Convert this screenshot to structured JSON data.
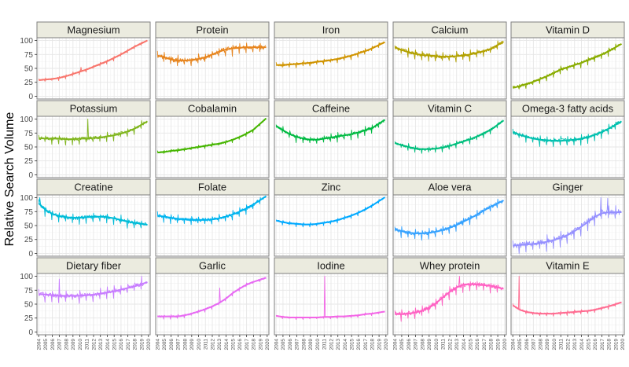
{
  "chart_data": {
    "type": "line",
    "title": "",
    "xlabel": "",
    "ylabel": "Relative Search Volume",
    "ylim": [
      0,
      100
    ],
    "y_ticks": [
      "0",
      "25",
      "50",
      "75",
      "100"
    ],
    "x_ticks": [
      "2004",
      "2005",
      "2006",
      "2007",
      "2008",
      "2009",
      "2010",
      "2011",
      "2012",
      "2013",
      "2014",
      "2015",
      "2016",
      "2017",
      "2018",
      "2019",
      "2020"
    ],
    "x": [
      2004,
      2005,
      2006,
      2007,
      2008,
      2009,
      2010,
      2011,
      2012,
      2013,
      2014,
      2015,
      2016,
      2017,
      2018,
      2019,
      2020
    ],
    "layout": "facet grid 4 rows x 5 columns, shared y axis, x ticks on bottom row",
    "grid": true,
    "legend": "none",
    "series_note": "Each panel shows monthly raw series (thin line) and a smoothed trend (thick line); values below are the trend read at yearly ticks plus notable spikes.",
    "series": [
      {
        "name": "Magnesium",
        "color": "#F8766D",
        "trend": [
          29,
          30,
          31,
          33,
          36,
          40,
          44,
          48,
          53,
          58,
          63,
          69,
          75,
          82,
          89,
          95,
          null
        ],
        "noise": 3,
        "spikes": [
          {
            "x": 2010.2,
            "y": 52
          }
        ]
      },
      {
        "name": "Protein",
        "color": "#E7851E",
        "trend": [
          73,
          70,
          66,
          64,
          64,
          65,
          67,
          70,
          75,
          80,
          84,
          86,
          87,
          88,
          88,
          88,
          null
        ],
        "noise": 8,
        "spikes": []
      },
      {
        "name": "Iron",
        "color": "#D09400",
        "trend": [
          56,
          56,
          57,
          58,
          59,
          60,
          62,
          63,
          65,
          67,
          70,
          73,
          77,
          81,
          86,
          92,
          null
        ],
        "noise": 4,
        "spikes": []
      },
      {
        "name": "Calcium",
        "color": "#B2A100",
        "trend": [
          88,
          83,
          79,
          76,
          74,
          73,
          72,
          71,
          71,
          72,
          73,
          75,
          78,
          81,
          85,
          92,
          null
        ],
        "noise": 7,
        "spikes": []
      },
      {
        "name": "Vitamin D",
        "color": "#89AC00",
        "trend": [
          15,
          18,
          22,
          26,
          31,
          36,
          42,
          48,
          52,
          56,
          60,
          65,
          70,
          75,
          81,
          88,
          null
        ],
        "noise": 5,
        "spikes": []
      },
      {
        "name": "Potassium",
        "color": "#7FB51C",
        "trend": [
          66,
          65,
          65,
          65,
          64,
          64,
          65,
          65,
          66,
          67,
          69,
          71,
          74,
          78,
          83,
          90,
          null
        ],
        "noise": 6,
        "spikes": [
          {
            "x": 2011.2,
            "y": 100
          }
        ]
      },
      {
        "name": "Cobalamin",
        "color": "#45B500",
        "trend": [
          40,
          41,
          43,
          44,
          46,
          48,
          50,
          52,
          54,
          56,
          59,
          63,
          68,
          74,
          81,
          92,
          null
        ],
        "noise": 3,
        "spikes": []
      },
      {
        "name": "Caffeine",
        "color": "#00BA42",
        "trend": [
          88,
          80,
          73,
          68,
          65,
          63,
          63,
          65,
          67,
          69,
          71,
          73,
          76,
          80,
          84,
          92,
          null
        ],
        "noise": 6,
        "spikes": []
      },
      {
        "name": "Vitamin C",
        "color": "#00BF7D",
        "trend": [
          57,
          53,
          50,
          47,
          46,
          46,
          47,
          49,
          52,
          56,
          60,
          64,
          69,
          75,
          81,
          90,
          null
        ],
        "noise": 5,
        "spikes": []
      },
      {
        "name": "Omega-3 fatty acids",
        "color": "#00C0AF",
        "trend": [
          77,
          72,
          68,
          65,
          63,
          62,
          61,
          61,
          62,
          63,
          65,
          68,
          72,
          77,
          83,
          90,
          null
        ],
        "noise": 7,
        "spikes": []
      },
      {
        "name": "Creatine",
        "color": "#00BCD8",
        "trend": [
          90,
          78,
          71,
          67,
          65,
          64,
          64,
          65,
          66,
          66,
          65,
          63,
          60,
          57,
          55,
          53,
          null
        ],
        "noise": 7,
        "spikes": [
          {
            "x": 2004.2,
            "y": 100
          }
        ]
      },
      {
        "name": "Folate",
        "color": "#00B4EF",
        "trend": [
          68,
          66,
          64,
          62,
          61,
          60,
          60,
          60,
          61,
          63,
          66,
          70,
          75,
          81,
          88,
          96,
          null
        ],
        "noise": 6,
        "spikes": []
      },
      {
        "name": "Zinc",
        "color": "#00A9FF",
        "trend": [
          59,
          56,
          54,
          53,
          52,
          52,
          53,
          55,
          57,
          60,
          64,
          68,
          73,
          79,
          86,
          94,
          null
        ],
        "noise": 3,
        "spikes": []
      },
      {
        "name": "Aloe vera",
        "color": "#35A2FF",
        "trend": [
          43,
          40,
          37,
          36,
          36,
          37,
          39,
          42,
          46,
          51,
          57,
          63,
          70,
          77,
          84,
          90,
          null
        ],
        "noise": 7,
        "spikes": []
      },
      {
        "name": "Ginger",
        "color": "#9590FF",
        "trend": [
          14,
          15,
          16,
          17,
          19,
          21,
          24,
          28,
          33,
          40,
          48,
          57,
          66,
          72,
          74,
          74,
          null
        ],
        "noise": 10,
        "spikes": [
          {
            "x": 2016.8,
            "y": 100
          },
          {
            "x": 2017.8,
            "y": 99
          }
        ]
      },
      {
        "name": "Dietary fiber",
        "color": "#C77CFF",
        "trend": [
          68,
          67,
          66,
          65,
          65,
          65,
          65,
          66,
          67,
          69,
          71,
          73,
          76,
          79,
          82,
          86,
          null
        ],
        "noise": 8,
        "spikes": [
          {
            "x": 2007.0,
            "y": 95
          },
          {
            "x": 2019.0,
            "y": 100
          }
        ]
      },
      {
        "name": "Garlic",
        "color": "#E76BF3",
        "trend": [
          28,
          28,
          28,
          28,
          30,
          33,
          37,
          41,
          46,
          52,
          60,
          70,
          78,
          85,
          90,
          94,
          null
        ],
        "noise": 3,
        "spikes": [
          {
            "x": 2013.1,
            "y": 79
          }
        ]
      },
      {
        "name": "Iodine",
        "color": "#F365E6",
        "trend": [
          29,
          27,
          26,
          26,
          26,
          26,
          26,
          27,
          27,
          28,
          28,
          29,
          30,
          32,
          33,
          35,
          null
        ],
        "noise": 2,
        "spikes": [
          {
            "x": 2011.1,
            "y": 100
          }
        ]
      },
      {
        "name": "Whey protein",
        "color": "#FF61C3",
        "trend": [
          32,
          32,
          33,
          35,
          38,
          44,
          52,
          62,
          72,
          80,
          85,
          86,
          85,
          84,
          83,
          80,
          null
        ],
        "noise": 8,
        "spikes": [
          {
            "x": 2013.4,
            "y": 100
          }
        ]
      },
      {
        "name": "Vitamin E",
        "color": "#FF6C91",
        "trend": [
          48,
          40,
          36,
          34,
          33,
          33,
          33,
          34,
          35,
          36,
          37,
          38,
          40,
          43,
          46,
          50,
          null
        ],
        "noise": 3,
        "spikes": [
          {
            "x": 2004.9,
            "y": 100
          }
        ]
      }
    ]
  }
}
